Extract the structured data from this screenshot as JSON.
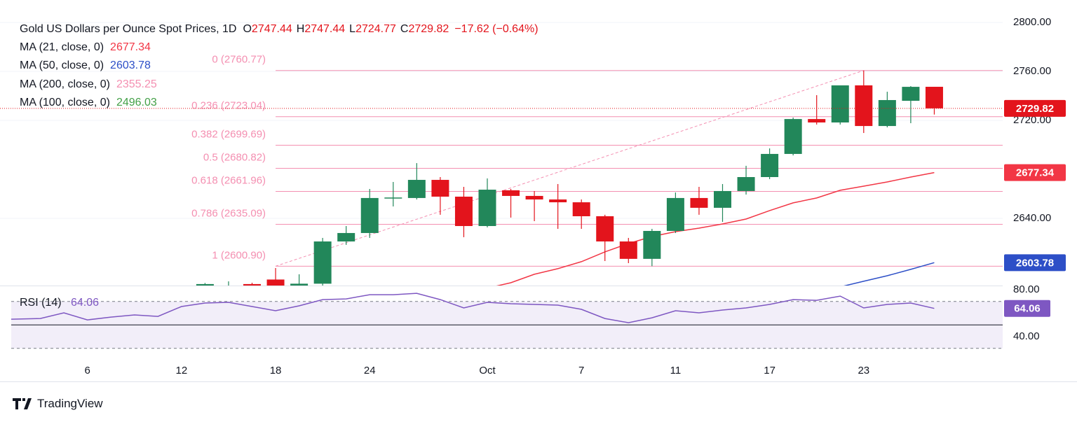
{
  "chart_data": {
    "type": "candlestick",
    "title": "Gold US Dollars per Ounce Spot Prices, 1D",
    "ohlc_legend": [
      {
        "label": "O",
        "value": 2747.44
      },
      {
        "label": "H",
        "value": 2747.44
      },
      {
        "label": "L",
        "value": 2724.77
      },
      {
        "label": "C",
        "value": 2729.82
      }
    ],
    "change": {
      "value": -17.62,
      "pct": -0.64,
      "label": "−17.62 (−0.64%)"
    },
    "categories": [
      null,
      null,
      null,
      "6",
      null,
      null,
      null,
      "12",
      null,
      null,
      null,
      "18",
      null,
      null,
      null,
      "24",
      null,
      null,
      null,
      null,
      "Oct",
      null,
      null,
      null,
      "7",
      null,
      null,
      null,
      "11",
      null,
      null,
      null,
      "17",
      null,
      null,
      null,
      "23",
      null,
      null,
      null
    ],
    "open": [
      null,
      null,
      null,
      null,
      null,
      null,
      null,
      null,
      2583,
      2582,
      2586.3,
      2590,
      2578,
      2586.6,
      2621.1,
      2628.0,
      2656.6,
      2656.6,
      2671.4,
      2657.7,
      2633.7,
      2662.9,
      2658.3,
      2655.4,
      2653.1,
      2641.7,
      2621.1,
      2606.9,
      2629.7,
      2656.6,
      2648.6,
      2662.3,
      2673.7,
      2692.6,
      2721.1,
      2718.3,
      2748.6,
      2715.4,
      2736.0,
      2747.44
    ],
    "high": [
      null,
      null,
      null,
      null,
      null,
      null,
      null,
      null,
      2587.2,
      2588.5,
      2587.4,
      2599.4,
      2594.3,
      2624.0,
      2633.7,
      2664.0,
      2669.7,
      2685.1,
      2673.7,
      2665.7,
      2672.6,
      2664.0,
      2662.3,
      2668.0,
      2655.4,
      2642.9,
      2624.0,
      2631.4,
      2661.1,
      2665.7,
      2668.0,
      2682.9,
      2697.1,
      2722.3,
      2740.6,
      2748.6,
      2760.77,
      2743.4,
      2748.0,
      2747.44
    ],
    "low": [
      null,
      null,
      null,
      null,
      null,
      null,
      null,
      null,
      2578,
      2575,
      2570,
      2560,
      2570,
      2584.2,
      2618.3,
      2624.0,
      2649.7,
      2655.4,
      2642.9,
      2624.6,
      2632.6,
      2640.6,
      2637.7,
      2631.4,
      2631.4,
      2605.1,
      2603.4,
      2600.9,
      2628.0,
      2642.9,
      2637.1,
      2659.4,
      2672.0,
      2691.4,
      2716.6,
      2716.6,
      2709.7,
      2714.3,
      2717.7,
      2724.77
    ],
    "close": [
      null,
      null,
      null,
      null,
      null,
      null,
      null,
      null,
      2586.3,
      2585,
      2579,
      2580,
      2586.6,
      2621.1,
      2628.0,
      2656.6,
      2657.0,
      2671.4,
      2657.7,
      2633.7,
      2663.4,
      2658.3,
      2655.4,
      2653.1,
      2641.7,
      2621.1,
      2606.9,
      2629.7,
      2656.6,
      2648.6,
      2662.3,
      2673.7,
      2692.6,
      2721.1,
      2718.3,
      2748.6,
      2715.4,
      2736.6,
      2747.4,
      2729.82
    ],
    "up_color": "#22875a",
    "down_color": "#e3141c",
    "ylim": [
      2585.1,
      2806.9
    ],
    "yticks": [
      {
        "value": 2640,
        "label": "2640.00"
      },
      {
        "value": 2720,
        "label": "2720.00"
      },
      {
        "value": 2760,
        "label": "2760.00"
      },
      {
        "value": 2800,
        "label": "2800.00"
      }
    ],
    "grid": true,
    "moving_averages": [
      {
        "name": "MA (21, close, 0)",
        "color": "#f23645",
        "last": 2677.34,
        "values": [
          null,
          null,
          null,
          null,
          null,
          null,
          null,
          null,
          null,
          null,
          null,
          null,
          null,
          null,
          null,
          null,
          null,
          null,
          null,
          null,
          2583.0,
          2587.4,
          2594.3,
          2598.9,
          2604.6,
          2612.6,
          2619.4,
          2625.1,
          2629.1,
          2632.0,
          2635.4,
          2639.4,
          2646.3,
          2652.6,
          2656.6,
          2662.9,
          2666.3,
          2669.7,
          2673.7,
          2677.34
        ]
      },
      {
        "name": "MA (50, close, 0)",
        "color": "#2d4fc7",
        "last": 2603.78,
        "values": [
          null,
          null,
          null,
          null,
          null,
          null,
          null,
          null,
          null,
          null,
          null,
          null,
          null,
          null,
          null,
          null,
          null,
          null,
          null,
          null,
          null,
          null,
          null,
          null,
          null,
          null,
          null,
          null,
          null,
          null,
          null,
          null,
          null,
          null,
          null,
          2584.0,
          2588.6,
          2593.1,
          2598.3,
          2603.78
        ]
      },
      {
        "name": "MA (200, close, 0)",
        "color": "#f48fb1",
        "last": 2355.25
      },
      {
        "name": "MA (100, close, 0)",
        "color": "#43a047",
        "last": 2496.03
      }
    ],
    "fibonacci": {
      "color": "#f48fb1",
      "levels": [
        {
          "value": 2760.77,
          "label": "0 (2760.77)"
        },
        {
          "value": 2723.04,
          "label": "0.236 (2723.04)"
        },
        {
          "value": 2699.69,
          "label": "0.382 (2699.69)"
        },
        {
          "value": 2680.82,
          "label": "0.5 (2680.82)"
        },
        {
          "value": 2661.96,
          "label": "0.618 (2661.96)"
        },
        {
          "value": 2635.09,
          "label": "0.786 (2635.09)"
        },
        {
          "value": 2600.9,
          "label": "1 (2600.90)"
        }
      ]
    },
    "rsi": {
      "name": "RSI (14)",
      "color": "#7e57c2",
      "last": 64.06,
      "values": [
        54.9,
        55.5,
        60.3,
        54.3,
        56.7,
        58.5,
        57.3,
        65.7,
        68.7,
        69.3,
        65.7,
        62.1,
        66.3,
        71.6,
        72.2,
        75.8,
        75.8,
        77.0,
        71.6,
        64.5,
        69.3,
        68.1,
        67.5,
        66.9,
        63.3,
        55.5,
        51.9,
        56.1,
        62.1,
        60.3,
        62.7,
        64.5,
        67.5,
        71.6,
        71.0,
        74.6,
        64.5,
        67.5,
        68.7,
        64.06
      ],
      "ylim": [
        25.7,
        83
      ],
      "yticks": [
        {
          "value": 80,
          "label": "80.00"
        },
        {
          "value": 40,
          "label": "40.00"
        }
      ],
      "levels": [
        70,
        50,
        30
      ]
    }
  },
  "footer": {
    "brand": "TradingView"
  }
}
